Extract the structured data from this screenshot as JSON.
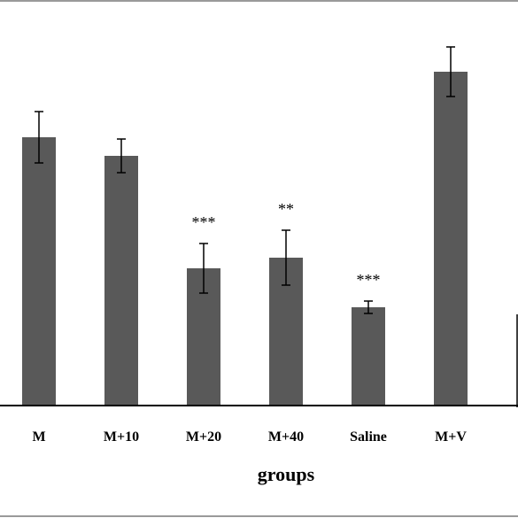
{
  "chart_data": {
    "type": "bar",
    "title": "",
    "xlabel": "groups",
    "ylabel": "",
    "categories": [
      "M",
      "M+10",
      "M+20",
      "M+40",
      "Saline",
      "M+V"
    ],
    "values": [
      303,
      282,
      155,
      167,
      111,
      377
    ],
    "errors": [
      29,
      19,
      28,
      31,
      7,
      28
    ],
    "significance": [
      "",
      "",
      "***",
      "**",
      "***",
      ""
    ],
    "ylim": [
      0,
      400
    ],
    "grid": false,
    "bar_color": "#595959"
  }
}
